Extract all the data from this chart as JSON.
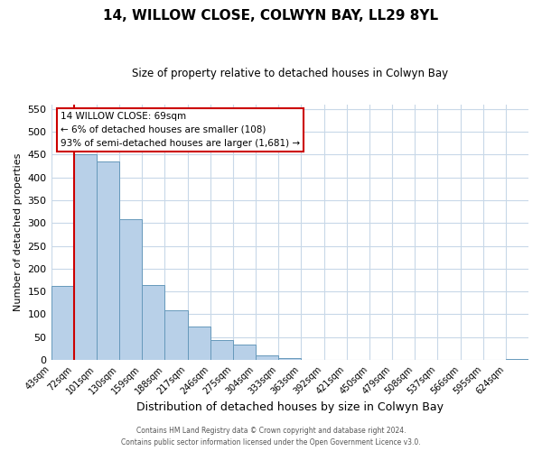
{
  "title": "14, WILLOW CLOSE, COLWYN BAY, LL29 8YL",
  "subtitle": "Size of property relative to detached houses in Colwyn Bay",
  "xlabel": "Distribution of detached houses by size in Colwyn Bay",
  "ylabel": "Number of detached properties",
  "bin_labels": [
    "43sqm",
    "72sqm",
    "101sqm",
    "130sqm",
    "159sqm",
    "188sqm",
    "217sqm",
    "246sqm",
    "275sqm",
    "304sqm",
    "333sqm",
    "363sqm",
    "392sqm",
    "421sqm",
    "450sqm",
    "479sqm",
    "508sqm",
    "537sqm",
    "566sqm",
    "595sqm",
    "624sqm"
  ],
  "bar_heights": [
    162,
    450,
    435,
    308,
    165,
    108,
    74,
    43,
    33,
    11,
    5,
    0,
    0,
    0,
    0,
    0,
    0,
    0,
    0,
    0,
    3
  ],
  "bar_color": "#b8d0e8",
  "bar_edge_color": "#6699bb",
  "property_line_x": 1,
  "annotation_title": "14 WILLOW CLOSE: 69sqm",
  "annotation_line1": "← 6% of detached houses are smaller (108)",
  "annotation_line2": "93% of semi-detached houses are larger (1,681) →",
  "annotation_box_color": "#ffffff",
  "annotation_box_edge_color": "#cc0000",
  "vline_color": "#cc0000",
  "ylim": [
    0,
    560
  ],
  "yticks": [
    0,
    50,
    100,
    150,
    200,
    250,
    300,
    350,
    400,
    450,
    500,
    550
  ],
  "footer_line1": "Contains HM Land Registry data © Crown copyright and database right 2024.",
  "footer_line2": "Contains public sector information licensed under the Open Government Licence v3.0.",
  "bg_color": "#ffffff",
  "grid_color": "#c8d8e8"
}
